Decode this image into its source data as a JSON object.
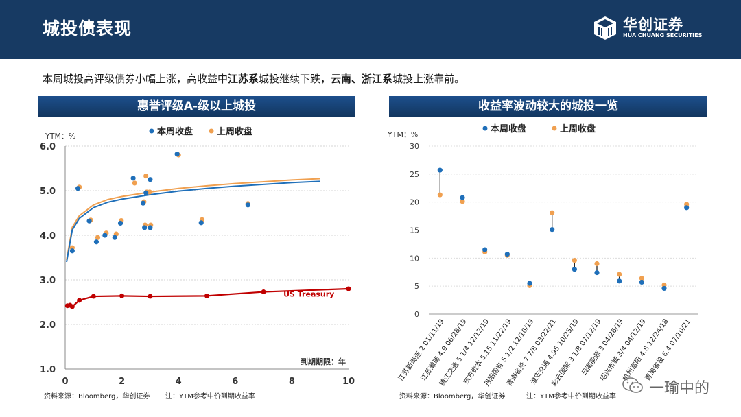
{
  "header": {
    "title": "城投债表现",
    "logo_cn": "华创证券",
    "logo_en": "HUA CHUANG SECURITIES"
  },
  "summary": {
    "part1": "本周城投高评级债券小幅上涨，高收益中",
    "bold1": "江苏系",
    "part2": "城投继续下跌，",
    "bold2": "云南、浙江系",
    "part3": "城投上涨靠前。"
  },
  "watermark": "一瑜中的",
  "colors": {
    "this_week": "#1f6fb9",
    "last_week": "#f0a050",
    "treasury": "#c00000",
    "header": "#173a63"
  },
  "chart_data": [
    {
      "type": "scatter",
      "title": "惠誉评级A-级以上城投",
      "ylabel": "YTM：%",
      "xlabel": "到期期限：年",
      "xlim": [
        0,
        10
      ],
      "ylim": [
        1.0,
        6.0
      ],
      "xticks": [
        "0",
        "2",
        "4",
        "6",
        "8",
        "10"
      ],
      "yticks": [
        "1.0",
        "2.0",
        "3.0",
        "4.0",
        "5.0",
        "6.0"
      ],
      "legend": [
        "本周收盘",
        "上周收盘"
      ],
      "series": [
        {
          "name": "本周收盘",
          "points": [
            [
              0.25,
              3.65
            ],
            [
              0.45,
              5.05
            ],
            [
              0.85,
              4.32
            ],
            [
              1.1,
              3.85
            ],
            [
              1.4,
              4.0
            ],
            [
              1.75,
              3.95
            ],
            [
              1.95,
              4.27
            ],
            [
              2.4,
              5.28
            ],
            [
              2.75,
              4.72
            ],
            [
              2.8,
              4.17
            ],
            [
              2.85,
              4.95
            ],
            [
              3.0,
              5.25
            ],
            [
              3.0,
              4.17
            ],
            [
              3.95,
              5.82
            ],
            [
              4.8,
              4.28
            ],
            [
              6.45,
              4.68
            ]
          ]
        },
        {
          "name": "上周收盘",
          "points": [
            [
              0.25,
              3.72
            ],
            [
              0.5,
              5.08
            ],
            [
              0.9,
              4.34
            ],
            [
              1.15,
              3.95
            ],
            [
              1.45,
              4.05
            ],
            [
              1.8,
              4.03
            ],
            [
              1.98,
              4.33
            ],
            [
              2.45,
              5.17
            ],
            [
              2.78,
              4.75
            ],
            [
              2.82,
              4.23
            ],
            [
              2.88,
              4.97
            ],
            [
              2.85,
              5.33
            ],
            [
              2.98,
              4.97
            ],
            [
              3.02,
              4.23
            ],
            [
              4.0,
              5.8
            ],
            [
              4.83,
              4.35
            ],
            [
              6.45,
              4.71
            ]
          ]
        }
      ],
      "fit_curves": [
        {
          "name": "本周收盘拟合",
          "x": [
            0.05,
            0.25,
            0.5,
            1,
            1.5,
            2,
            3,
            4,
            5,
            6,
            7,
            8,
            9
          ],
          "y": [
            3.4,
            4.12,
            4.38,
            4.62,
            4.74,
            4.81,
            4.91,
            4.99,
            5.05,
            5.1,
            5.14,
            5.18,
            5.21
          ]
        },
        {
          "name": "上周收盘拟合",
          "x": [
            0.05,
            0.25,
            0.5,
            1,
            1.5,
            2,
            3,
            4,
            5,
            6,
            7,
            8,
            9
          ],
          "y": [
            3.45,
            4.18,
            4.44,
            4.68,
            4.8,
            4.87,
            4.97,
            5.05,
            5.11,
            5.16,
            5.2,
            5.24,
            5.27
          ]
        }
      ],
      "treasury": {
        "label": "US Treasury",
        "x": [
          0.08,
          0.17,
          0.25,
          0.5,
          1,
          2,
          3,
          5,
          7,
          10
        ],
        "y": [
          2.42,
          2.43,
          2.4,
          2.54,
          2.63,
          2.64,
          2.63,
          2.64,
          2.73,
          2.8
        ]
      },
      "source": "资料来源：Bloomberg，华创证券",
      "note": "注：YTM参考中价到期收益率"
    },
    {
      "type": "dot-range",
      "title": "收益率波动较大的城投一览",
      "ylabel": "YTM：%",
      "ylim": [
        0,
        30
      ],
      "yticks": [
        "0",
        "5",
        "10",
        "15",
        "20",
        "25",
        "30"
      ],
      "legend": [
        "本周收盘",
        "上周收盘"
      ],
      "categories": [
        "江苏新海连 2 01/11/19",
        "江苏瀚瑞 4.9 06/28/19",
        "镇江交通 5 1/4 12/12/19",
        "东方资本 5.15 11/22/19",
        "丹阳国有 5 1/2 12/16/19",
        "青海省投 7 7/8 03/22/21",
        "淮安交通 4.95 10/25/19",
        "彩云国际 3 1/8 07/12/19",
        "云南能源 3 04/26/19",
        "绍兴市城 3/4 04/12/19",
        "杭州富阳 4.8 12/24/18",
        "青海省投 6.4 07/10/21"
      ],
      "series": [
        {
          "name": "本周收盘",
          "values": [
            25.7,
            20.8,
            11.5,
            10.7,
            5.5,
            15.1,
            8.0,
            7.4,
            5.9,
            5.7,
            4.6,
            19.0
          ]
        },
        {
          "name": "上周收盘",
          "values": [
            21.3,
            20.1,
            11.1,
            10.5,
            5.1,
            18.1,
            9.6,
            9.0,
            7.1,
            6.4,
            5.2,
            19.6
          ]
        }
      ],
      "source": "资料来源：Bloomberg，华创证券",
      "note": "注：YTM参考中价到期收益率"
    }
  ]
}
